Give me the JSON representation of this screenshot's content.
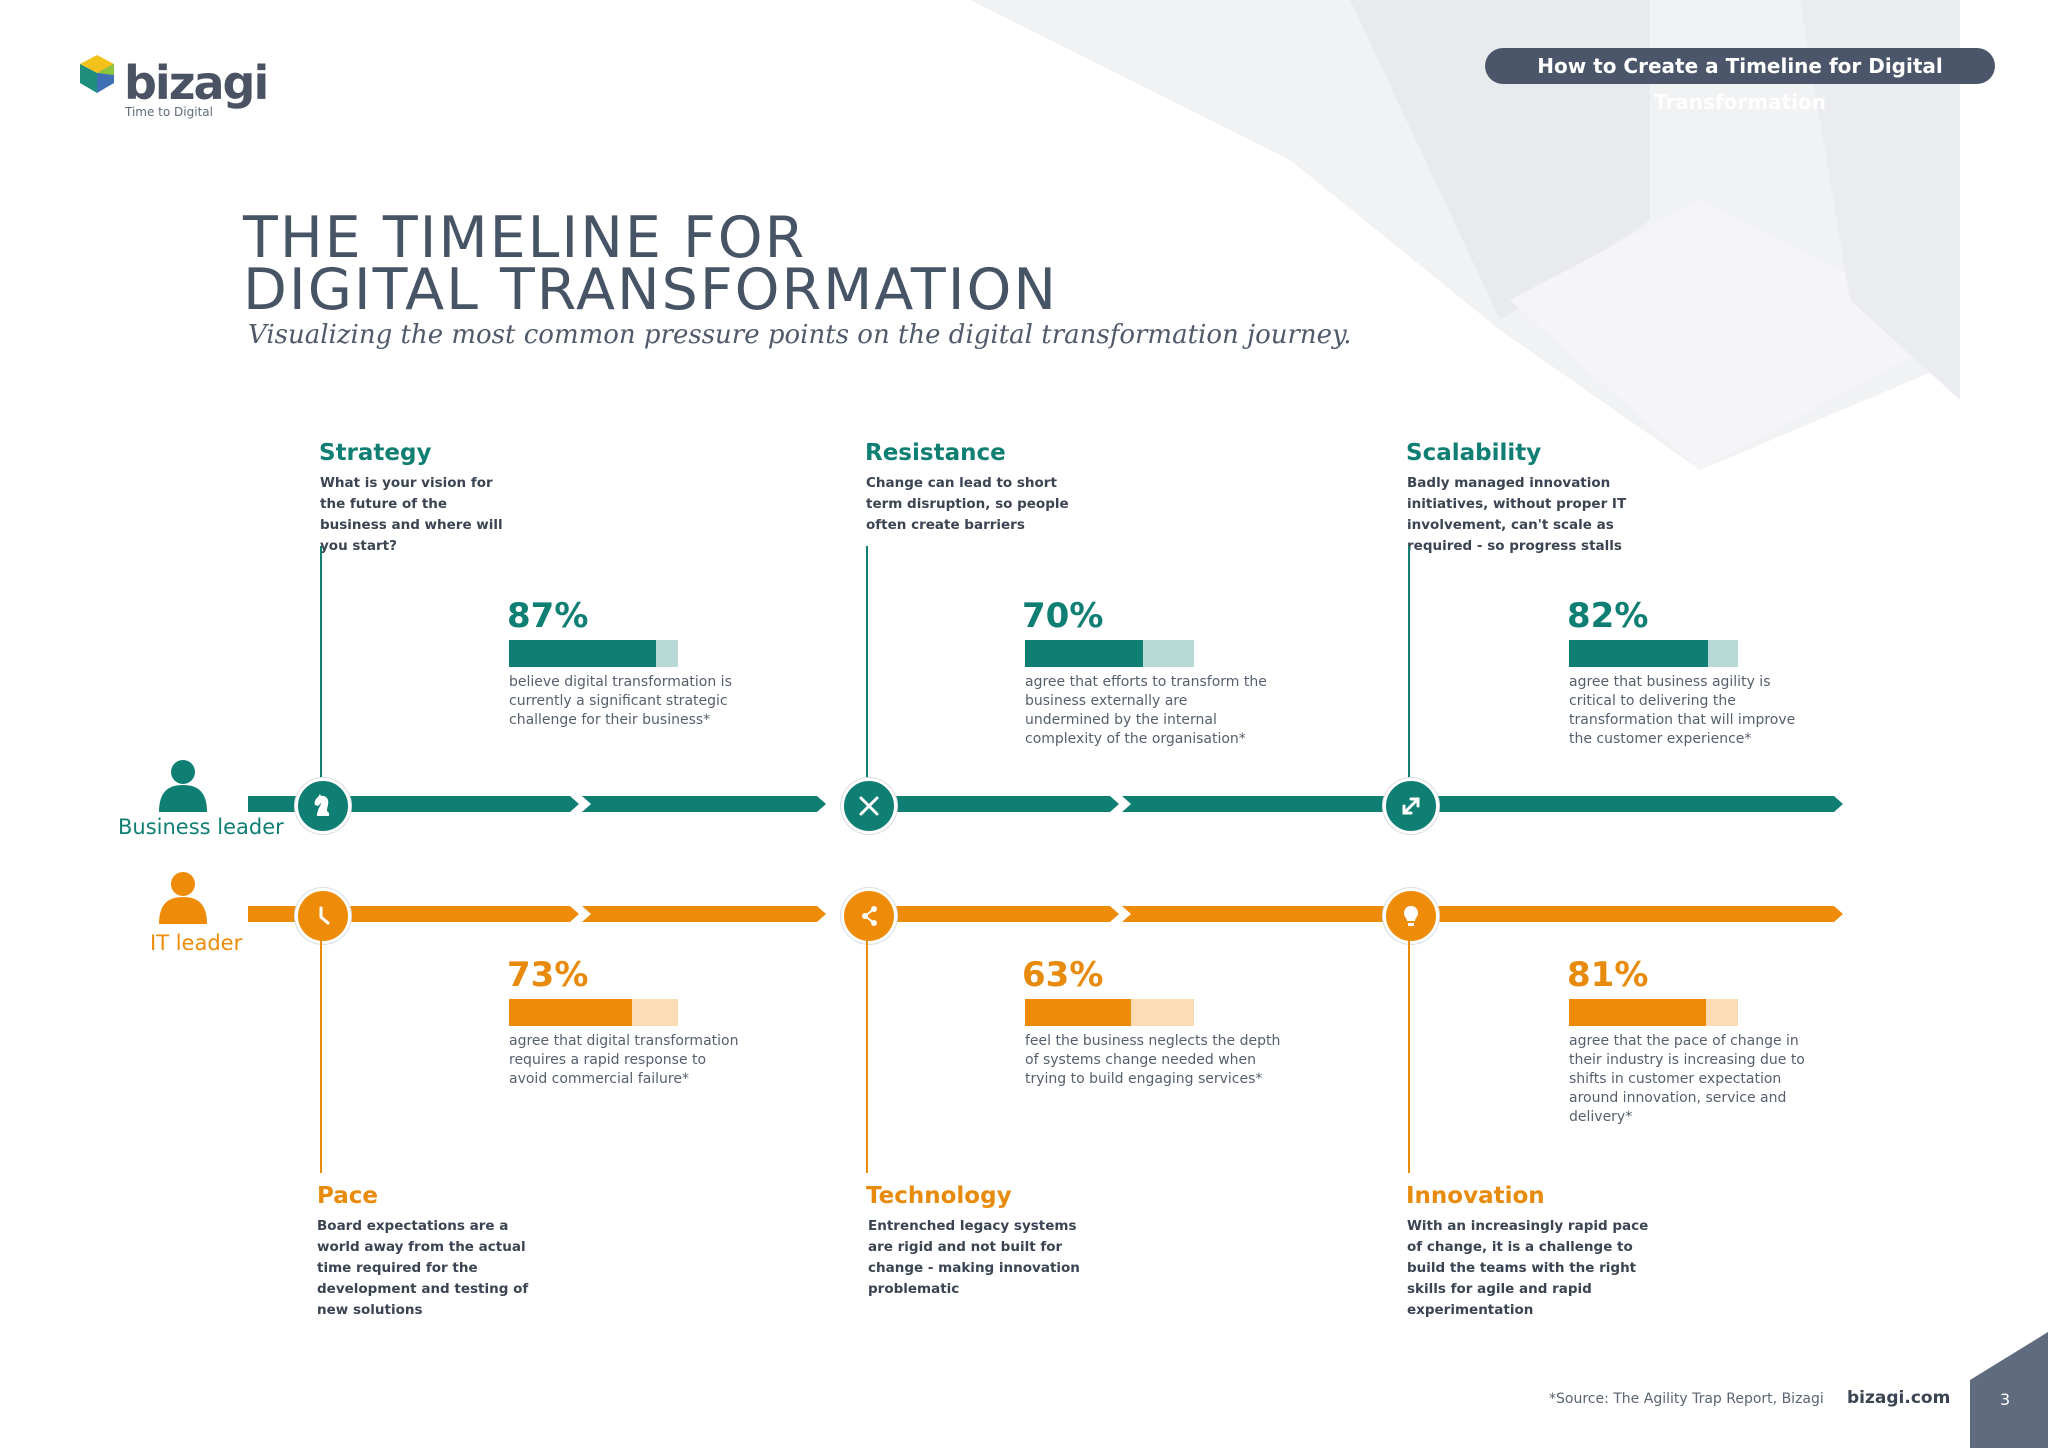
{
  "brand": {
    "name": "bizagi",
    "tagline": "Time to Digital",
    "url": "bizagi.com"
  },
  "header": {
    "pill_text": "How to Create a Timeline for Digital Transformation"
  },
  "title": {
    "line1": "THE TIMELINE FOR",
    "line2": "DIGITAL TRANSFORMATION"
  },
  "subtitle": "Visualizing the most common pressure points on the digital transformation journey.",
  "rows": {
    "business": {
      "label": "Business leader",
      "color": "#0f7f73"
    },
    "it": {
      "label": "IT leader",
      "color": "#ee8c0a"
    }
  },
  "business_points": [
    {
      "heading": "Strategy",
      "desc": "What is your vision for the future of the business and where will you start?",
      "pct": "87%",
      "value": 0.87,
      "stat": "believe digital transformation is currently a significant strategic challenge for their business*",
      "icon": "chess-knight-icon"
    },
    {
      "heading": "Resistance",
      "desc": "Change can lead to short term disruption, so people often create barriers",
      "pct": "70%",
      "value": 0.7,
      "stat": "agree that efforts to transform the business externally are undermined by the internal complexity of the organisation*",
      "icon": "close-x-icon"
    },
    {
      "heading": "Scalability",
      "desc": "Badly managed innovation initiatives, without proper IT involvement, can't scale as required - so progress stalls",
      "pct": "82%",
      "value": 0.82,
      "stat": "agree that business agility is critical to delivering the transformation that will improve the customer experience*",
      "icon": "expand-arrows-icon"
    }
  ],
  "it_points": [
    {
      "heading": "Pace",
      "desc": "Board expectations are a world away from the actual time required for the development and testing of new solutions",
      "pct": "73%",
      "value": 0.73,
      "stat": "agree that digital transformation requires a rapid response to avoid commercial failure*",
      "icon": "clock-icon"
    },
    {
      "heading": "Technology",
      "desc": "Entrenched legacy systems are rigid and not built for change - making innovation problematic",
      "pct": "63%",
      "value": 0.63,
      "stat": "feel the business neglects the depth of systems change needed when trying to build engaging services*",
      "icon": "share-network-icon"
    },
    {
      "heading": "Innovation",
      "desc": "With an increasingly rapid pace of change, it is a challenge to build the teams with the right skills for agile and rapid experimentation",
      "pct": "81%",
      "value": 0.81,
      "stat": "agree that the pace of change in their industry is increasing due to shifts in customer expectation around innovation, service and delivery*",
      "icon": "lightbulb-icon"
    }
  ],
  "footer": {
    "source": "*Source: The Agility Trap Report, Bizagi",
    "page": "3"
  },
  "colors": {
    "teal": "#0f7f73",
    "teal_light": "#b9d9d6",
    "orange": "#ee8c0a",
    "orange_light": "#fbdcb4",
    "dark": "#4b566a"
  }
}
